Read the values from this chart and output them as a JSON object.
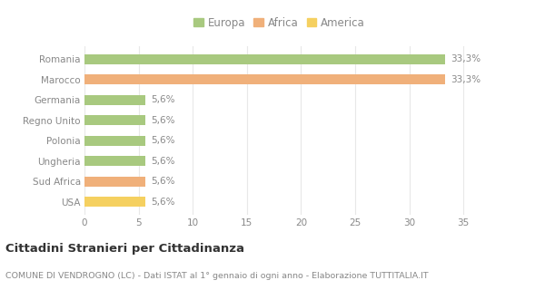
{
  "categories": [
    "Romania",
    "Marocco",
    "Germania",
    "Regno Unito",
    "Polonia",
    "Ungheria",
    "Sud Africa",
    "USA"
  ],
  "values": [
    33.3,
    33.3,
    5.6,
    5.6,
    5.6,
    5.6,
    5.6,
    5.6
  ],
  "bar_colors": [
    "#a8c97f",
    "#f0b07a",
    "#a8c97f",
    "#a8c97f",
    "#a8c97f",
    "#a8c97f",
    "#f0b07a",
    "#f5d060"
  ],
  "labels": [
    "33,3%",
    "33,3%",
    "5,6%",
    "5,6%",
    "5,6%",
    "5,6%",
    "5,6%",
    "5,6%"
  ],
  "legend_labels": [
    "Europa",
    "Africa",
    "America"
  ],
  "legend_colors": [
    "#a8c97f",
    "#f0b07a",
    "#f5d060"
  ],
  "xlim": [
    0,
    36
  ],
  "xticks": [
    0,
    5,
    10,
    15,
    20,
    25,
    30,
    35
  ],
  "title": "Cittadini Stranieri per Cittadinanza",
  "subtitle": "COMUNE DI VENDROGNO (LC) - Dati ISTAT al 1° gennaio di ogni anno - Elaborazione TUTTITALIA.IT",
  "background_color": "#ffffff",
  "plot_bg_color": "#f9f9f9",
  "grid_color": "#e8e8e8",
  "bar_height": 0.5,
  "label_fontsize": 7.5,
  "tick_fontsize": 7.5,
  "title_fontsize": 9.5,
  "subtitle_fontsize": 6.8,
  "legend_fontsize": 8.5
}
